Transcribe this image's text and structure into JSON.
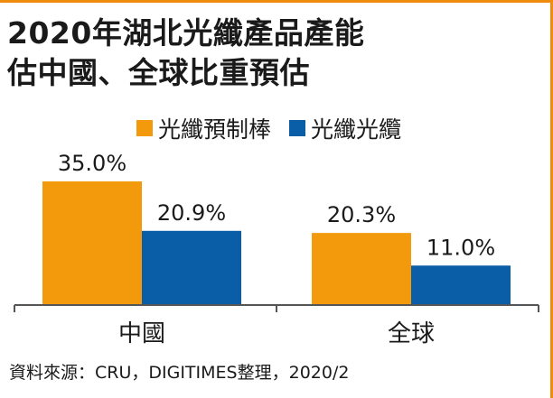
{
  "title_lines": [
    "2020年湖北光纖產品產能",
    "估中國、全球比重預估"
  ],
  "source": "資料來源：CRU，DIGITIMES整理，2020/2",
  "colors": {
    "accent": "#ef8c0e",
    "series_1": "#f39a0c",
    "series_2": "#0a5ea8",
    "axis": "#555555",
    "text": "#1a1a1a"
  },
  "chart_data": {
    "type": "bar",
    "categories": [
      "中國",
      "全球"
    ],
    "series": [
      {
        "name": "光纖預制棒",
        "values": [
          35.0,
          20.3
        ],
        "labels": [
          "35.0%",
          "20.3%"
        ]
      },
      {
        "name": "光纖光纜",
        "values": [
          20.9,
          11.0
        ],
        "labels": [
          "20.9%",
          "11.0%"
        ]
      }
    ],
    "ylim": [
      0,
      35.0
    ],
    "value_unit": "%",
    "legend_position": "top",
    "grid": false
  }
}
